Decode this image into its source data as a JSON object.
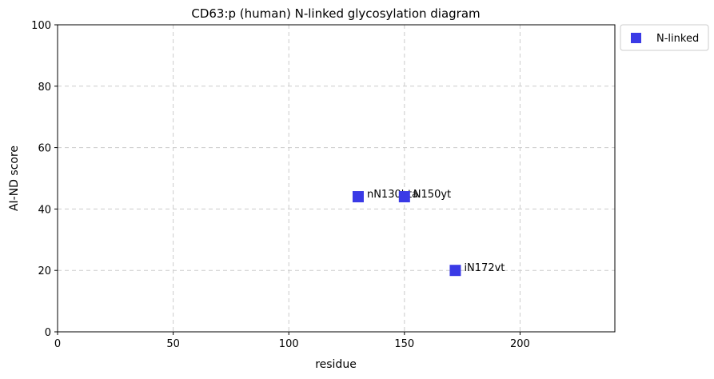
{
  "chart_data": {
    "type": "scatter",
    "title": "CD63:p (human) N-linked glycosylation diagram",
    "xlabel": "residue",
    "ylabel": "AI-ND score",
    "xlim": [
      0,
      241
    ],
    "ylim": [
      0,
      100
    ],
    "xticks": [
      "0",
      "50",
      "100",
      "150",
      "200"
    ],
    "yticks": [
      "0",
      "20",
      "40",
      "60",
      "80",
      "100"
    ],
    "grid": true,
    "legend_position": "outside-top-right",
    "series": [
      {
        "name": "N-linked",
        "color": "#3a3ae6",
        "points": [
          {
            "x": 130,
            "y": 44,
            "label": "nN130hta"
          },
          {
            "x": 150,
            "y": 44,
            "label": "N150yt"
          },
          {
            "x": 172,
            "y": 20,
            "label": "iN172vt"
          }
        ]
      }
    ]
  }
}
